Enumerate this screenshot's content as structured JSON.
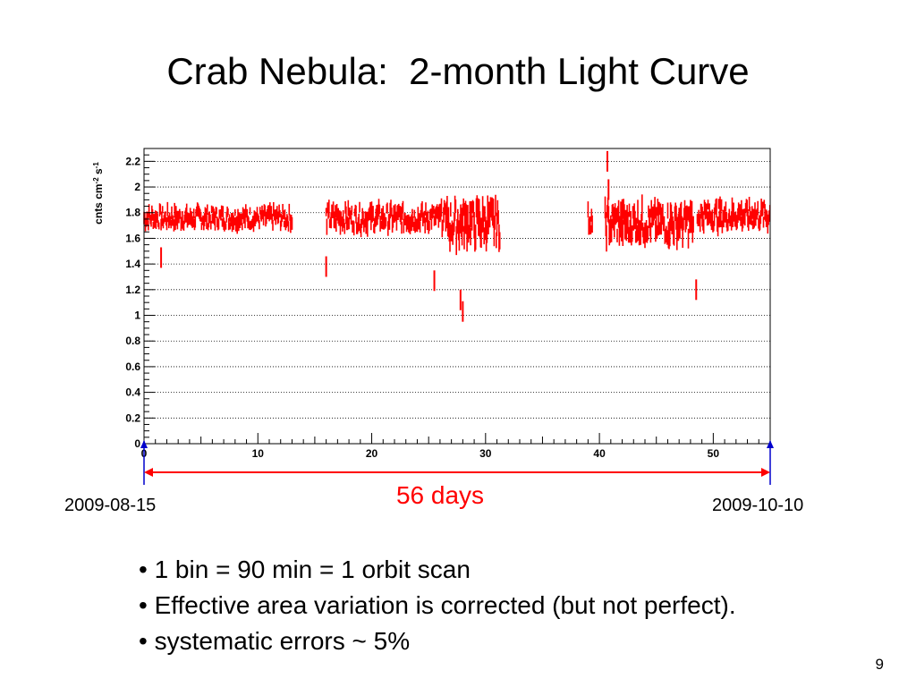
{
  "slide": {
    "title": "Crab Nebula:  2-month Light Curve",
    "page_number": "9"
  },
  "annotations": {
    "start_date": "2009-08-15",
    "end_date": "2009-10-10",
    "span_label": "56 days",
    "arrow_color": "#ff0000",
    "marker_color": "#0000cc"
  },
  "notes": [
    "• 1 bin = 90 min = 1 orbit scan",
    "• Effective area variation is corrected (but not perfect).",
    "• systematic errors ~ 5%"
  ],
  "chart_data": {
    "type": "scatter",
    "title": "",
    "xlabel": "",
    "ylabel": "cnts cm-2 s-1",
    "xlim": [
      0,
      55
    ],
    "ylim": [
      0,
      2.3
    ],
    "x_ticks": [
      0,
      10,
      20,
      30,
      40,
      50
    ],
    "y_ticks": [
      0,
      0.2,
      0.4,
      0.6,
      0.8,
      1,
      1.2,
      1.4,
      1.6,
      1.8,
      2,
      2.2
    ],
    "y_tick_labels": [
      "0",
      "0.2",
      "0.4",
      "0.6",
      "0.8",
      "1",
      "1.2",
      "1.4",
      "1.6",
      "1.8",
      "2",
      "2.2"
    ],
    "grid": "horizontal dotted",
    "series": [
      {
        "color": "#ff0000",
        "segments": [
          {
            "x_start": 0.0,
            "x_end": 13.0,
            "mean": 1.76,
            "spread": 0.1
          },
          {
            "x_start": 16.0,
            "x_end": 26.5,
            "mean": 1.76,
            "spread": 0.12
          },
          {
            "x_start": 26.5,
            "x_end": 31.3,
            "mean": 1.72,
            "spread": 0.2
          },
          {
            "x_start": 39.0,
            "x_end": 39.4,
            "mean": 1.75,
            "spread": 0.12
          },
          {
            "x_start": 40.5,
            "x_end": 48.3,
            "mean": 1.72,
            "spread": 0.18
          },
          {
            "x_start": 48.6,
            "x_end": 55.0,
            "mean": 1.78,
            "spread": 0.13
          }
        ],
        "outliers": [
          {
            "x": 1.5,
            "y": 1.45
          },
          {
            "x": 16.0,
            "y": 1.38
          },
          {
            "x": 25.5,
            "y": 1.27
          },
          {
            "x": 27.8,
            "y": 1.12
          },
          {
            "x": 28.0,
            "y": 1.03
          },
          {
            "x": 40.7,
            "y": 2.2
          },
          {
            "x": 40.8,
            "y": 1.98
          },
          {
            "x": 48.5,
            "y": 1.2
          }
        ]
      }
    ]
  }
}
